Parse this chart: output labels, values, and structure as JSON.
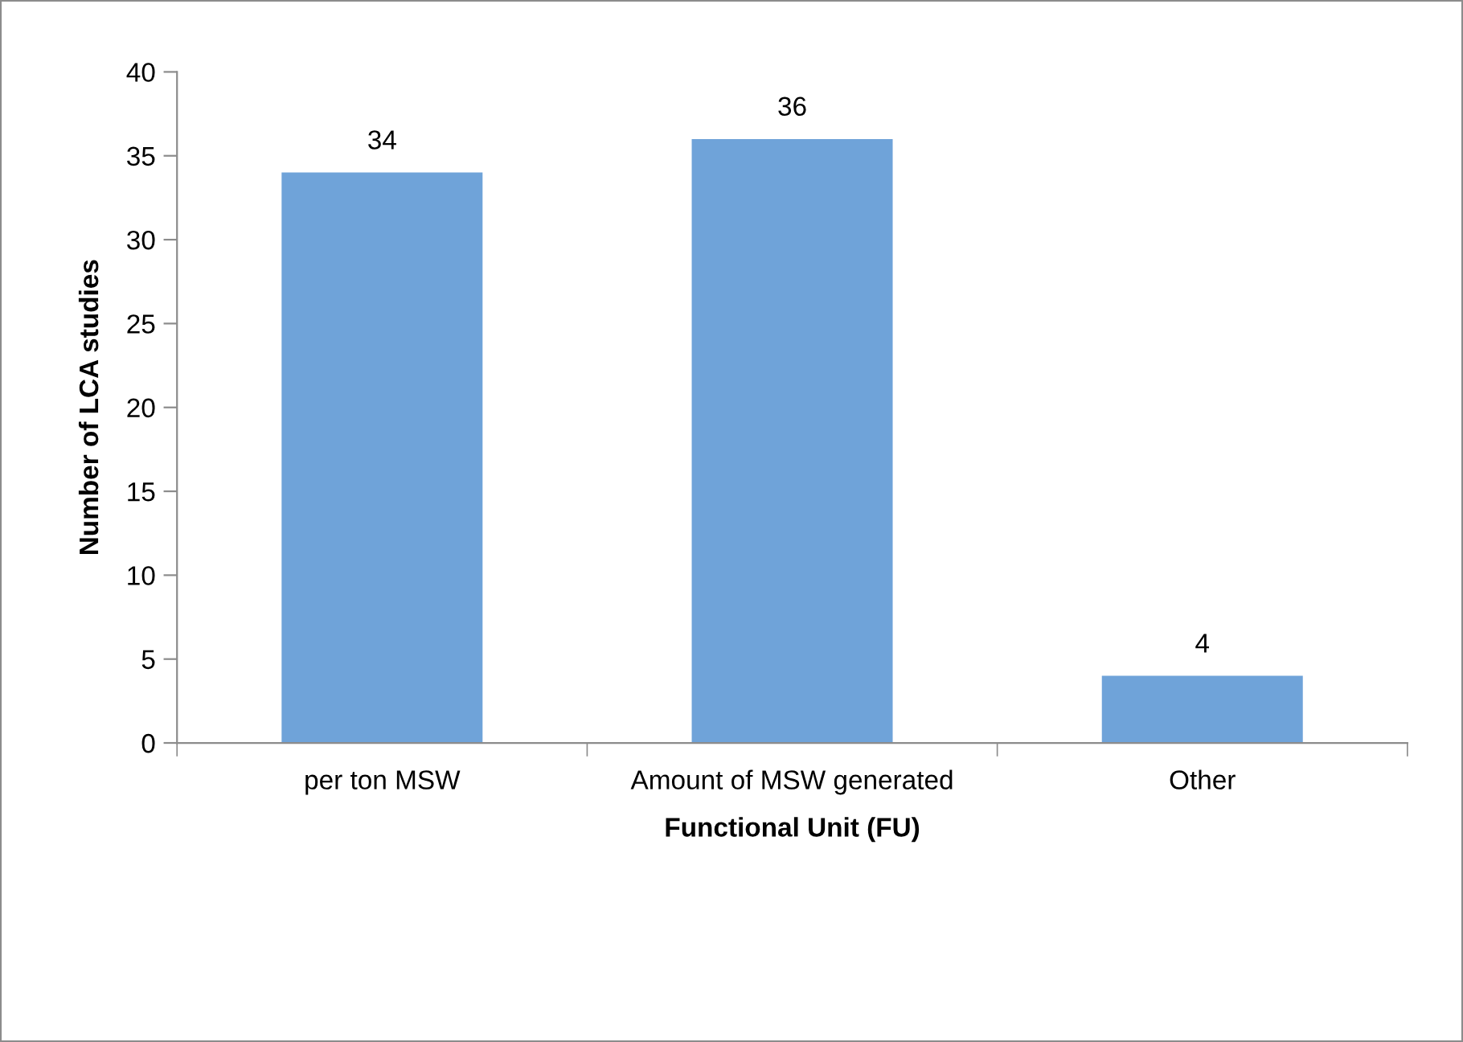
{
  "chart_data": {
    "type": "bar",
    "xlabel": "Functional Unit (FU)",
    "ylabel": "Number of LCA studies",
    "categories": [
      "per ton MSW",
      "Amount of MSW generated",
      "Other"
    ],
    "values": [
      34,
      36,
      4
    ],
    "color": "#6fa3d9",
    "ylim": [
      0,
      40
    ],
    "yticks": [
      0,
      5,
      10,
      15,
      20,
      25,
      30,
      35,
      40
    ],
    "data_labels": true,
    "grid": false,
    "legend": false
  }
}
